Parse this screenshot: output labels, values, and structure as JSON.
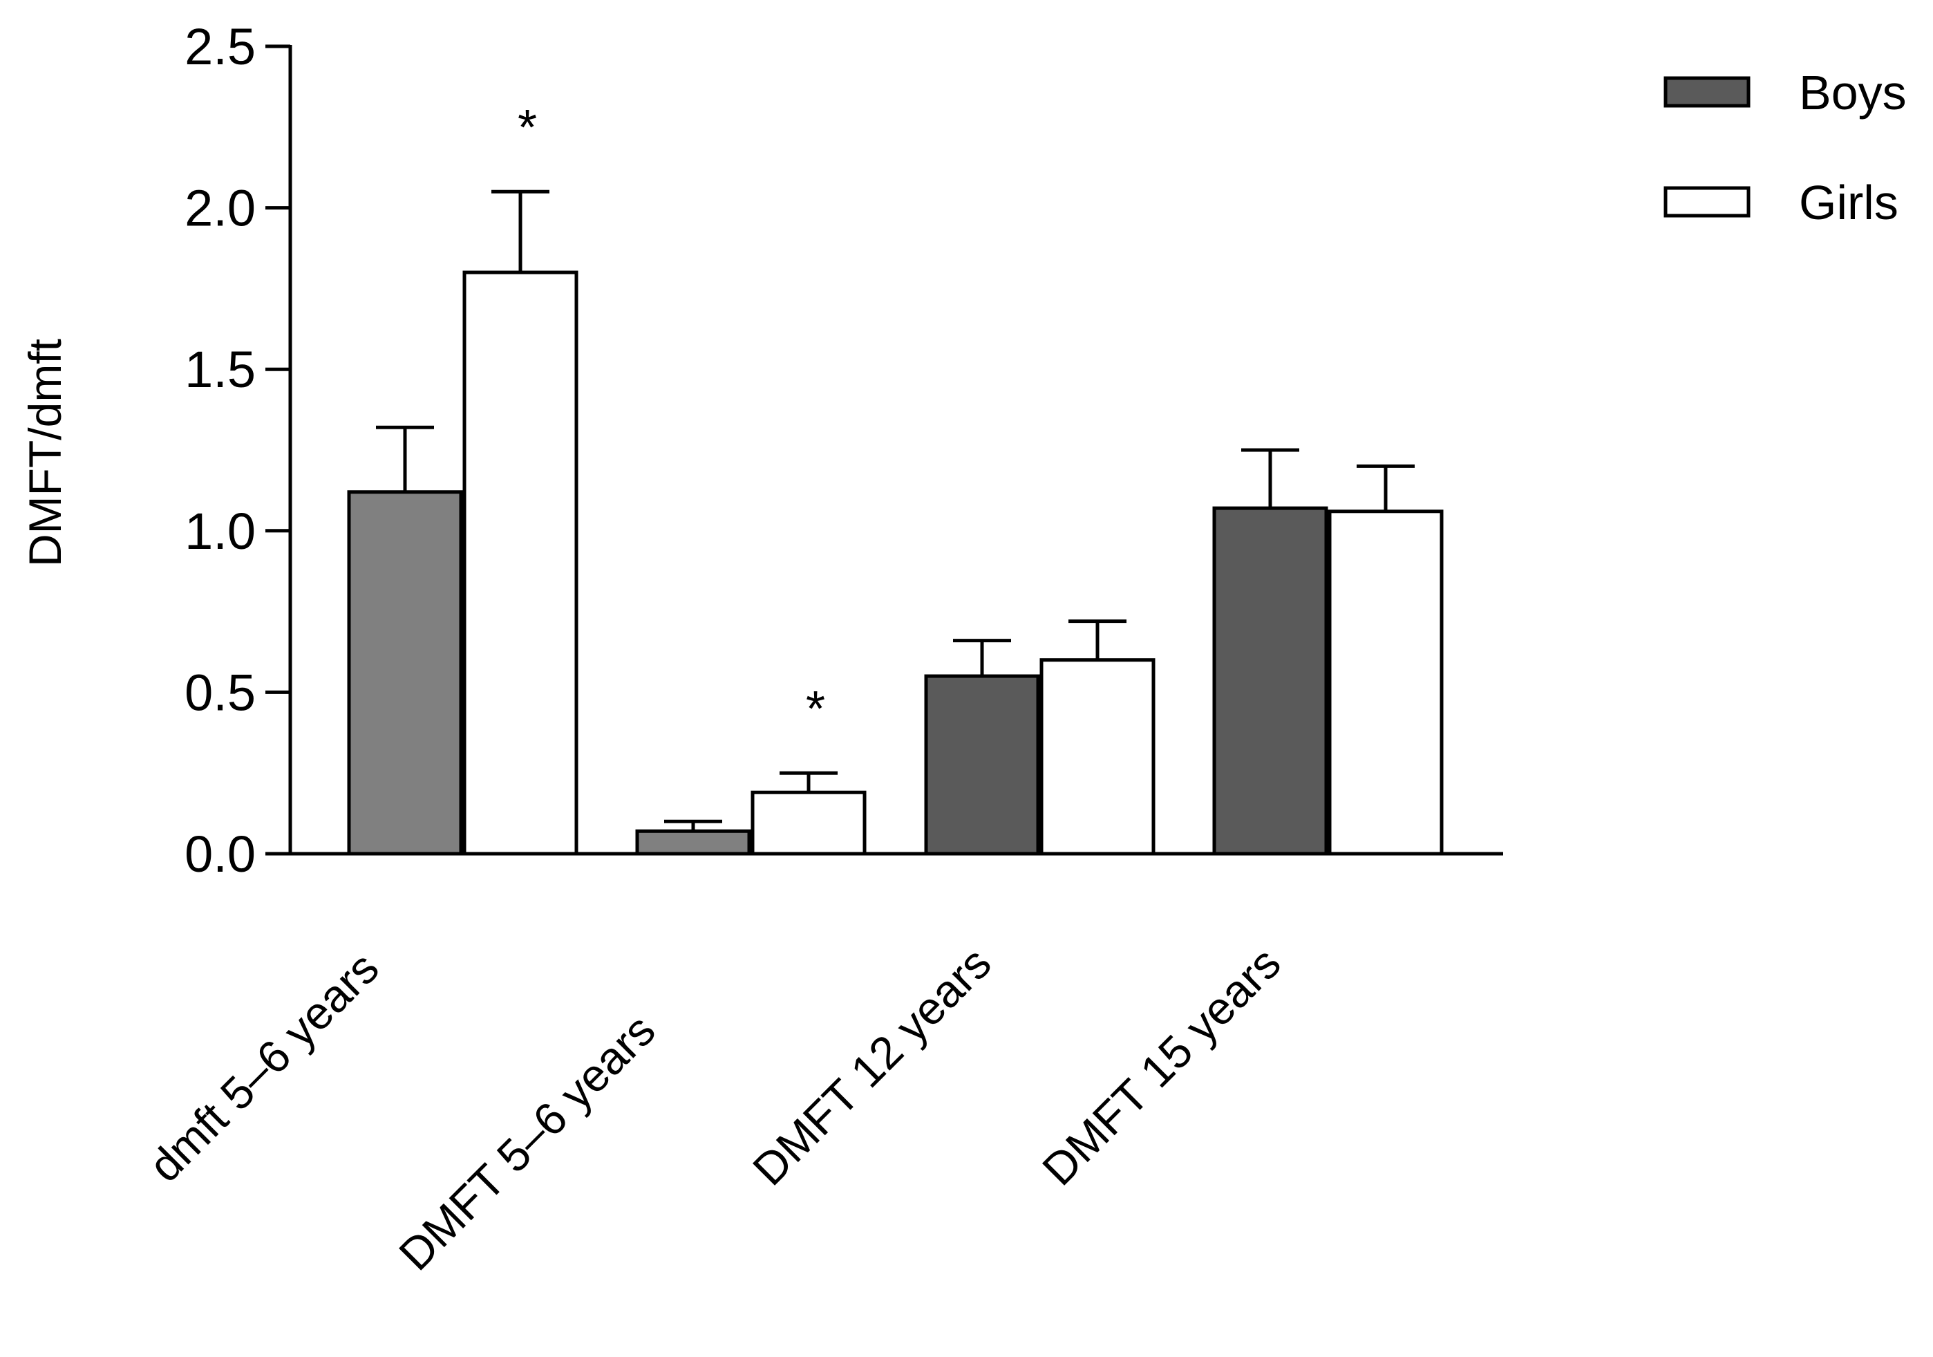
{
  "chart_data": {
    "type": "bar",
    "ylabel": "DMFT/dmft",
    "xlabel": "",
    "ylim": [
      0,
      2.5
    ],
    "yticks": [
      "0.0",
      "0.5",
      "1.0",
      "1.5",
      "2.0",
      "2.5"
    ],
    "categories": [
      "dmft 5–6 years",
      "DMFT 5–6 years",
      "DMFT 12 years",
      "DMFT 15 years"
    ],
    "series": [
      {
        "name": "Boys",
        "values": [
          1.12,
          0.07,
          0.55,
          1.07
        ],
        "errors": [
          0.2,
          0.03,
          0.11,
          0.18
        ],
        "colors": [
          "#808080",
          "#808080",
          "#5a5a5a",
          "#5a5a5a"
        ]
      },
      {
        "name": "Girls",
        "values": [
          1.8,
          0.19,
          0.6,
          1.06
        ],
        "errors": [
          0.25,
          0.06,
          0.12,
          0.14
        ],
        "colors": [
          "#ffffff",
          "#ffffff",
          "#ffffff",
          "#ffffff"
        ]
      }
    ],
    "annotations": [
      {
        "text": "*",
        "category": 0,
        "series": 1
      },
      {
        "text": "*",
        "category": 1,
        "series": 1
      }
    ],
    "legend": {
      "placement": "top-right",
      "entries": [
        {
          "label": "Boys",
          "color": "#5a5a5a"
        },
        {
          "label": "Girls",
          "color": "#ffffff"
        }
      ]
    },
    "grid": false
  }
}
